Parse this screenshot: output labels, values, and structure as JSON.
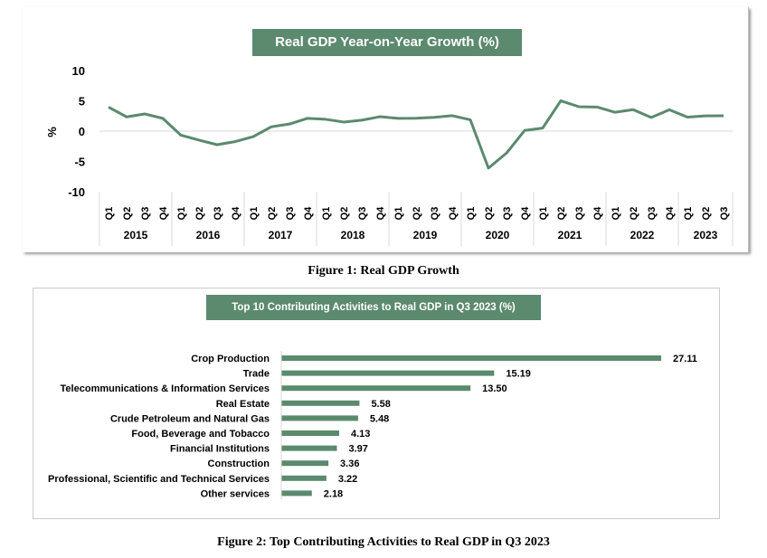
{
  "chart_data": [
    {
      "type": "line",
      "title": "Real GDP Year-on-Year Growth (%)",
      "ylabel": "%",
      "xlabel": "",
      "ylim": [
        -10,
        10
      ],
      "yticks": [
        10,
        5,
        0,
        -5,
        -10
      ],
      "grid": false,
      "years": [
        "2015",
        "2016",
        "2017",
        "2018",
        "2019",
        "2020",
        "2021",
        "2022",
        "2023"
      ],
      "categories": [
        "Q1",
        "Q2",
        "Q3",
        "Q4",
        "Q1",
        "Q2",
        "Q3",
        "Q4",
        "Q1",
        "Q2",
        "Q3",
        "Q4",
        "Q1",
        "Q2",
        "Q3",
        "Q4",
        "Q1",
        "Q2",
        "Q3",
        "Q4",
        "Q1",
        "Q2",
        "Q3",
        "Q4",
        "Q1",
        "Q2",
        "Q3",
        "Q4",
        "Q1",
        "Q2",
        "Q3",
        "Q4",
        "Q1",
        "Q2",
        "Q3"
      ],
      "values": [
        3.96,
        2.35,
        2.84,
        2.11,
        -0.67,
        -1.49,
        -2.24,
        -1.73,
        -0.91,
        0.72,
        1.17,
        2.11,
        1.95,
        1.5,
        1.81,
        2.38,
        2.1,
        2.12,
        2.28,
        2.55,
        1.87,
        -6.1,
        -3.62,
        0.11,
        0.51,
        5.01,
        4.03,
        3.98,
        3.11,
        3.54,
        2.25,
        3.52,
        2.31,
        2.51,
        2.54
      ],
      "color": "#5b8a6e"
    },
    {
      "type": "bar",
      "orientation": "horizontal",
      "title": "Top 10 Contributing Activities to Real GDP in Q3 2023 (%)",
      "categories": [
        "Crop Production",
        "Trade",
        "Telecommunications & Information Services",
        "Real Estate",
        "Crude Petroleum and Natural Gas",
        "Food, Beverage and Tobacco",
        "Financial Institutions",
        "Construction",
        "Professional, Scientific and Technical Services",
        "Other services"
      ],
      "values": [
        27.11,
        15.19,
        13.5,
        5.58,
        5.48,
        4.13,
        3.97,
        3.36,
        3.22,
        2.18
      ],
      "labels": [
        "27.11",
        "15.19",
        "13.50",
        "5.58",
        "5.48",
        "4.13",
        "3.97",
        "3.36",
        "3.22",
        "2.18"
      ],
      "color": "#5b8a6e"
    }
  ],
  "captions": {
    "fig1": "Figure 1: Real GDP Growth",
    "fig2": "Figure 2: Top Contributing Activities to Real GDP in Q3 2023"
  }
}
